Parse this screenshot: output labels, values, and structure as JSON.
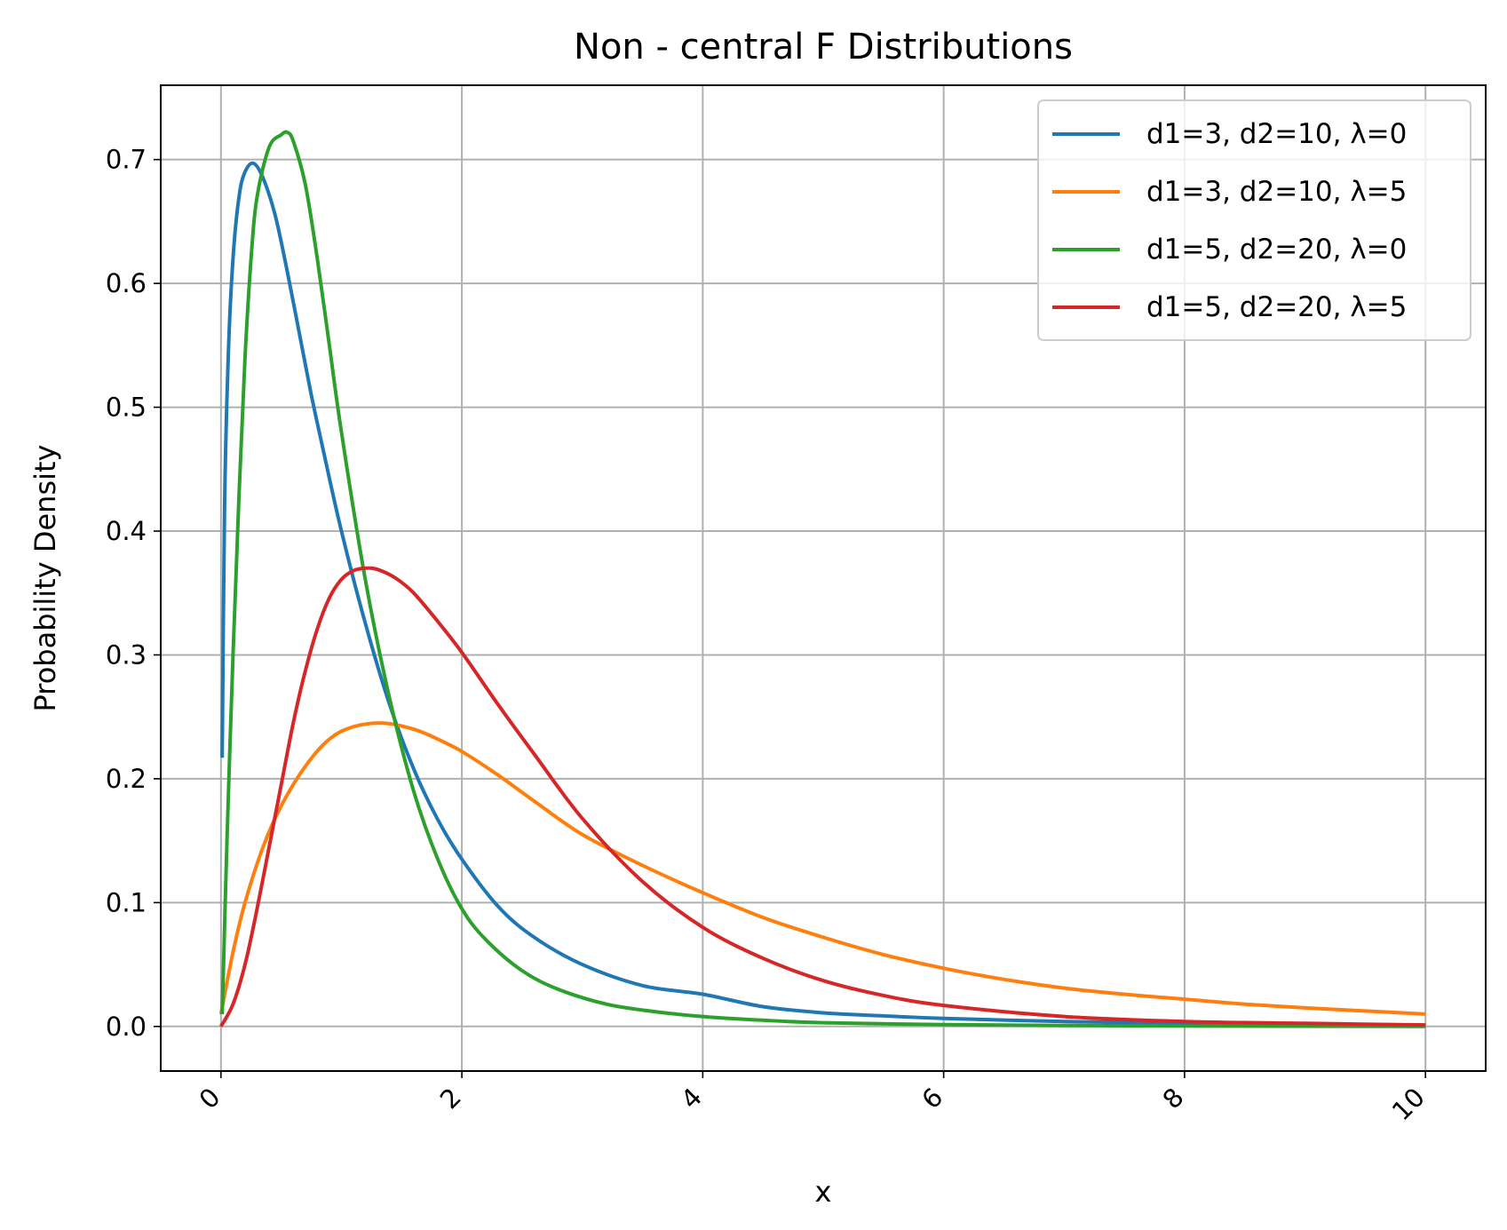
{
  "chart_data": {
    "type": "line",
    "title": "Non - central F Distributions",
    "xlabel": "x",
    "ylabel": "Probability Density",
    "xlim": [
      -0.5,
      10.5
    ],
    "ylim": [
      -0.036,
      0.76
    ],
    "xticks": [
      0,
      2,
      4,
      6,
      8,
      10
    ],
    "xtick_labels": [
      "0",
      "2",
      "4",
      "6",
      "8",
      "10"
    ],
    "xtick_rotation_deg": 45,
    "yticks": [
      0.0,
      0.1,
      0.2,
      0.3,
      0.4,
      0.5,
      0.6,
      0.7
    ],
    "ytick_labels": [
      "0.0",
      "0.1",
      "0.2",
      "0.3",
      "0.4",
      "0.5",
      "0.6",
      "0.7"
    ],
    "grid": true,
    "legend_position": "top-right",
    "series": [
      {
        "name": "d1=3, d2=10, λ=0",
        "color": "#1f77b4",
        "x": [
          0.01,
          0.03,
          0.06,
          0.1,
          0.15,
          0.2,
          0.27,
          0.35,
          0.45,
          0.55,
          0.65,
          0.75,
          0.85,
          1.0,
          1.2,
          1.4,
          1.6,
          1.8,
          2.0,
          2.3,
          2.6,
          3.0,
          3.5,
          4.0,
          4.5,
          5.0,
          5.5,
          6.0,
          7.0,
          8.0,
          9.0,
          10.0
        ],
        "y": [
          0.217,
          0.42,
          0.54,
          0.62,
          0.67,
          0.69,
          0.697,
          0.685,
          0.655,
          0.61,
          0.56,
          0.51,
          0.465,
          0.4,
          0.325,
          0.26,
          0.208,
          0.167,
          0.135,
          0.097,
          0.072,
          0.05,
          0.033,
          0.026,
          0.016,
          0.011,
          0.0085,
          0.0065,
          0.004,
          0.0025,
          0.0015,
          0.001
        ]
      },
      {
        "name": "d1=3, d2=10, λ=5",
        "color": "#ff7f0e",
        "x": [
          0.0,
          0.1,
          0.2,
          0.35,
          0.5,
          0.7,
          0.9,
          1.1,
          1.35,
          1.6,
          1.8,
          2.0,
          2.3,
          2.6,
          3.0,
          3.5,
          4.0,
          4.5,
          5.0,
          5.5,
          6.0,
          6.5,
          7.0,
          7.5,
          8.0,
          8.5,
          9.0,
          9.5,
          10.0
        ],
        "y": [
          0.01,
          0.06,
          0.1,
          0.145,
          0.178,
          0.21,
          0.232,
          0.242,
          0.245,
          0.24,
          0.232,
          0.222,
          0.203,
          0.182,
          0.155,
          0.13,
          0.108,
          0.088,
          0.072,
          0.058,
          0.047,
          0.038,
          0.031,
          0.026,
          0.022,
          0.018,
          0.015,
          0.0125,
          0.01
        ]
      },
      {
        "name": "d1=5, d2=20, λ=0",
        "color": "#2ca02c",
        "x": [
          0.01,
          0.05,
          0.1,
          0.15,
          0.2,
          0.25,
          0.3,
          0.4,
          0.5,
          0.55,
          0.6,
          0.7,
          0.8,
          0.9,
          1.0,
          1.2,
          1.4,
          1.6,
          1.8,
          2.0,
          2.2,
          2.5,
          2.8,
          3.2,
          3.6,
          4.0,
          4.5,
          5.0,
          6.0,
          7.0,
          8.0,
          10.0
        ],
        "y": [
          0.01,
          0.15,
          0.3,
          0.43,
          0.54,
          0.62,
          0.67,
          0.71,
          0.72,
          0.722,
          0.715,
          0.68,
          0.62,
          0.55,
          0.48,
          0.36,
          0.265,
          0.19,
          0.135,
          0.095,
          0.07,
          0.045,
          0.03,
          0.018,
          0.012,
          0.008,
          0.005,
          0.003,
          0.0015,
          0.0008,
          0.0004,
          0.0001
        ]
      },
      {
        "name": "d1=5, d2=20, λ=5",
        "color": "#d62728",
        "x": [
          0.0,
          0.1,
          0.2,
          0.3,
          0.4,
          0.5,
          0.6,
          0.7,
          0.8,
          0.9,
          1.0,
          1.1,
          1.2,
          1.3,
          1.45,
          1.6,
          1.8,
          2.0,
          2.3,
          2.6,
          3.0,
          3.5,
          4.0,
          4.5,
          5.0,
          5.5,
          6.0,
          7.0,
          8.0,
          9.0,
          10.0
        ],
        "y": [
          0.0,
          0.018,
          0.05,
          0.095,
          0.145,
          0.195,
          0.245,
          0.287,
          0.321,
          0.346,
          0.361,
          0.368,
          0.37,
          0.369,
          0.362,
          0.35,
          0.327,
          0.302,
          0.26,
          0.22,
          0.168,
          0.117,
          0.08,
          0.055,
          0.037,
          0.025,
          0.017,
          0.008,
          0.004,
          0.0025,
          0.0012
        ]
      }
    ]
  }
}
